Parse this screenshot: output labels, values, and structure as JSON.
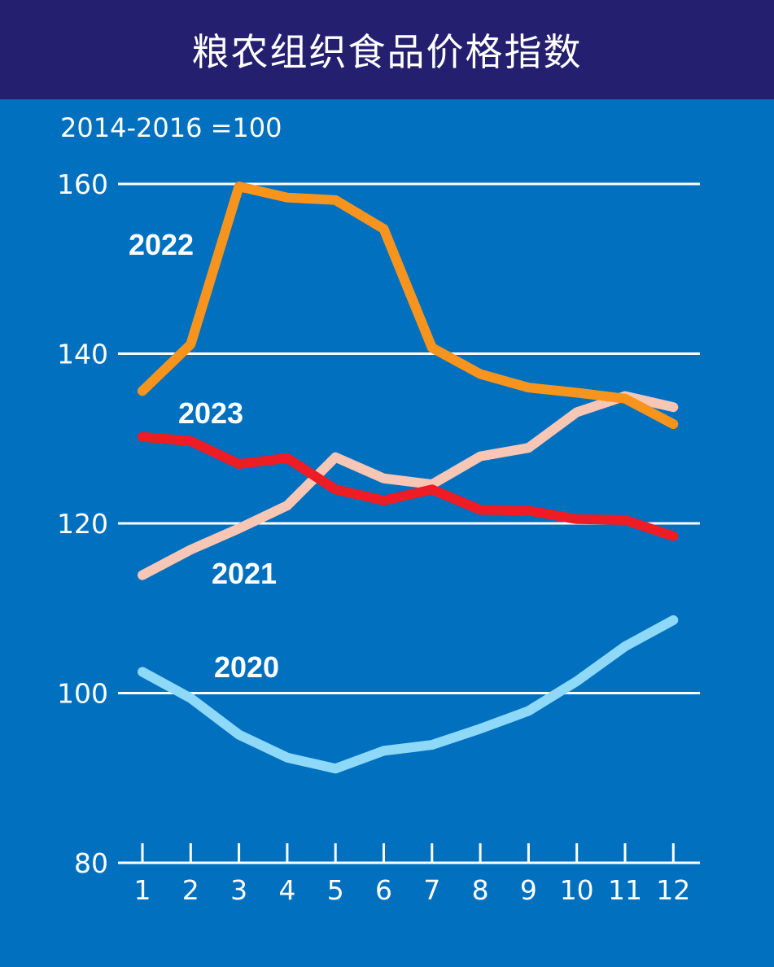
{
  "title": "粮农组织食品价格指数",
  "colors": {
    "header": "#241f6e",
    "background": "#0070bf",
    "grid": "#ffffff"
  },
  "chart_data": {
    "type": "line",
    "title": "粮农组织食品价格指数",
    "base_note": "2014-2016 =100",
    "xlabel": "",
    "ylabel": "",
    "x": [
      1,
      2,
      3,
      4,
      5,
      6,
      7,
      8,
      9,
      10,
      11,
      12
    ],
    "x_tick_labels": [
      "1",
      "2",
      "3",
      "4",
      "5",
      "6",
      "7",
      "8",
      "9",
      "10",
      "11",
      "12"
    ],
    "y_ticks": [
      80,
      100,
      120,
      140,
      160
    ],
    "y_tick_labels": [
      "80",
      "100",
      "120",
      "140",
      "160"
    ],
    "ylim": [
      80,
      160
    ],
    "grid": true,
    "series": [
      {
        "name": "2020",
        "color": "#8ed8f8",
        "values": [
          102.5,
          99.4,
          95.1,
          92.4,
          91.1,
          93.2,
          93.9,
          95.8,
          97.9,
          101.4,
          105.5,
          108.6
        ]
      },
      {
        "name": "2021",
        "color": "#f7c6b5",
        "values": [
          113.9,
          116.9,
          119.4,
          122.1,
          127.8,
          125.3,
          124.6,
          127.9,
          128.9,
          133.1,
          135.0,
          133.7
        ]
      },
      {
        "name": "2022",
        "color": "#f7941d",
        "values": [
          135.6,
          141.1,
          159.7,
          158.4,
          158.1,
          154.7,
          140.7,
          137.6,
          136.0,
          135.4,
          134.7,
          131.7
        ]
      },
      {
        "name": "2023",
        "color": "#ee1c25",
        "values": [
          130.2,
          129.7,
          127.0,
          127.7,
          124.0,
          122.7,
          124.0,
          121.6,
          121.5,
          120.5,
          120.4,
          118.5
        ]
      }
    ]
  }
}
